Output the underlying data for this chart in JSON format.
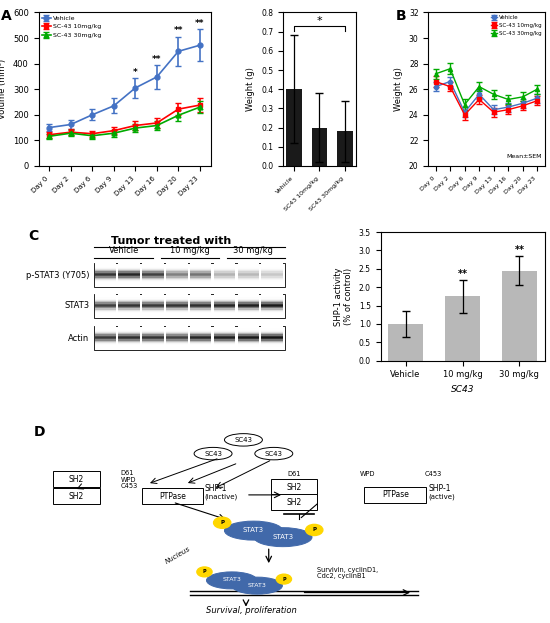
{
  "panel_A_line": {
    "days": [
      "Day 0",
      "Day 2",
      "Day 6",
      "Day 9",
      "Day 13",
      "Day 16",
      "Day 20",
      "Day 23"
    ],
    "vehicle_mean": [
      150,
      162,
      200,
      235,
      305,
      348,
      448,
      472
    ],
    "vehicle_sem": [
      15,
      18,
      22,
      30,
      38,
      48,
      58,
      62
    ],
    "sc43_10_mean": [
      122,
      132,
      126,
      138,
      158,
      168,
      222,
      238
    ],
    "sc43_10_sem": [
      12,
      13,
      12,
      14,
      17,
      19,
      24,
      26
    ],
    "sc43_30_mean": [
      116,
      128,
      118,
      128,
      148,
      158,
      198,
      230
    ],
    "sc43_30_sem": [
      10,
      12,
      11,
      13,
      15,
      17,
      21,
      24
    ],
    "ylabel": "Volume (mm³)",
    "ylim": [
      0,
      600
    ],
    "sig_day_indices": [
      4,
      5,
      6,
      7
    ],
    "sig_labels": [
      "*",
      "**",
      "**",
      "**"
    ]
  },
  "panel_A_bar": {
    "categories": [
      "Vehicle",
      "SC43 10mg/kg",
      "SC43 30mg/kg"
    ],
    "means": [
      0.4,
      0.2,
      0.18
    ],
    "sems": [
      0.28,
      0.18,
      0.16
    ],
    "ylabel": "Weight (g)",
    "ylim": [
      0,
      0.8
    ],
    "sig_label": "*"
  },
  "panel_B": {
    "days": [
      "Day 0",
      "Day 2",
      "Day 6",
      "Day 9",
      "Day 13",
      "Day 16",
      "Day 20",
      "Day 23"
    ],
    "vehicle_mean": [
      26.2,
      26.6,
      24.2,
      25.6,
      24.4,
      24.6,
      24.9,
      25.3
    ],
    "vehicle_sem": [
      0.35,
      0.35,
      0.4,
      0.35,
      0.35,
      0.35,
      0.35,
      0.35
    ],
    "sc43_10_mean": [
      26.6,
      26.2,
      24.0,
      25.2,
      24.2,
      24.4,
      24.7,
      25.1
    ],
    "sc43_10_sem": [
      0.4,
      0.35,
      0.4,
      0.35,
      0.35,
      0.35,
      0.35,
      0.35
    ],
    "sc43_30_mean": [
      27.2,
      27.6,
      24.8,
      26.2,
      25.6,
      25.2,
      25.4,
      26.0
    ],
    "sc43_30_sem": [
      0.4,
      0.45,
      0.45,
      0.35,
      0.35,
      0.35,
      0.35,
      0.35
    ],
    "ylabel": "Weight (g)",
    "ylim": [
      20,
      32
    ],
    "note": "Mean±SEM"
  },
  "panel_C_bar": {
    "categories": [
      "Vehicle",
      "10 mg/kg",
      "30 mg/kg"
    ],
    "means": [
      1.0,
      1.75,
      2.45
    ],
    "sems": [
      0.35,
      0.45,
      0.4
    ],
    "ylabel": "SHP-1 activity\n(% of control)",
    "xlabel": "SC43",
    "ylim": [
      0,
      3.5
    ],
    "yticks": [
      0.0,
      0.5,
      1.0,
      1.5,
      2.0,
      2.5,
      3.0,
      3.5
    ],
    "sig_labels": [
      "",
      "**",
      "**"
    ]
  },
  "colors": {
    "vehicle": "#4472C4",
    "sc43_10": "#FF0000",
    "sc43_30": "#00AA00",
    "bar_black": "#1a1a1a",
    "bar_gray": "#b8b8b8",
    "stat3_blue": "#4169AA"
  },
  "legend": {
    "vehicle": "Vehicle",
    "sc43_10": "SC-43 10mg/kg",
    "sc43_30": "SC-43 30mg/kg"
  }
}
